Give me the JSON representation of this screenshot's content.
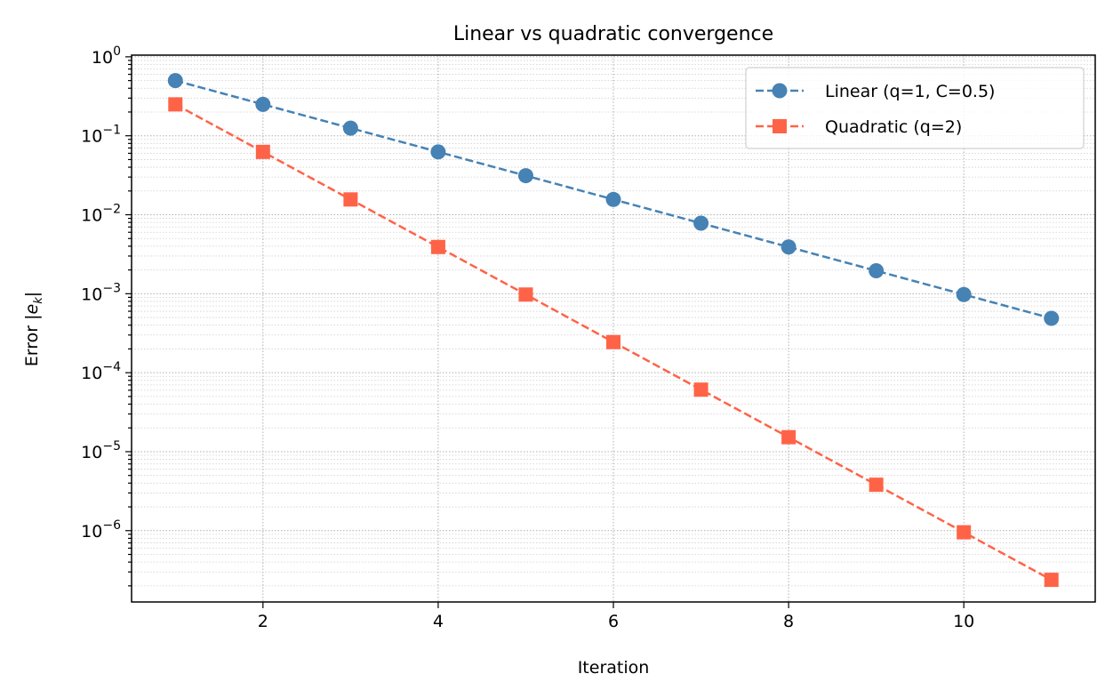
{
  "chart_data": {
    "type": "line",
    "title": "Linear vs quadratic convergence",
    "xlabel": "Iteration",
    "ylabel": "Error |e_k|",
    "yscale": "log",
    "xlim": [
      0.5,
      11.5
    ],
    "ylim": [
      1.25e-07,
      1.05
    ],
    "x_ticks": [
      2,
      4,
      6,
      8,
      10
    ],
    "y_ticks": [
      {
        "exp": 0,
        "label": "10",
        "sup": "0"
      },
      {
        "exp": -1,
        "label": "10",
        "sup": "−1"
      },
      {
        "exp": -2,
        "label": "10",
        "sup": "−2"
      },
      {
        "exp": -3,
        "label": "10",
        "sup": "−3"
      },
      {
        "exp": -4,
        "label": "10",
        "sup": "−4"
      },
      {
        "exp": -5,
        "label": "10",
        "sup": "−5"
      },
      {
        "exp": -6,
        "label": "10",
        "sup": "−6"
      }
    ],
    "grid": "major and minor, dotted",
    "legend_position": "top-right",
    "x": [
      1,
      2,
      3,
      4,
      5,
      6,
      7,
      8,
      9,
      10,
      11
    ],
    "series": [
      {
        "name": "Linear (q=1, C=0.5)",
        "color": "#4682b4",
        "marker": "circle",
        "linestyle": "dashed",
        "values": [
          0.5,
          0.25,
          0.125,
          0.0625,
          0.03125,
          0.015625,
          0.0078125,
          0.00390625,
          0.001953125,
          0.0009765625,
          0.00048828125
        ]
      },
      {
        "name": "Quadratic (q=2)",
        "color": "#ff6347",
        "marker": "square",
        "linestyle": "dashed",
        "values": [
          0.25,
          0.0625,
          0.015625,
          0.00390625,
          0.0009765625,
          0.000244140625,
          6.103515625e-05,
          1.52587890625e-05,
          3.814697265625e-06,
          9.5367431640625e-07,
          2.384185791015625e-07
        ]
      }
    ]
  }
}
